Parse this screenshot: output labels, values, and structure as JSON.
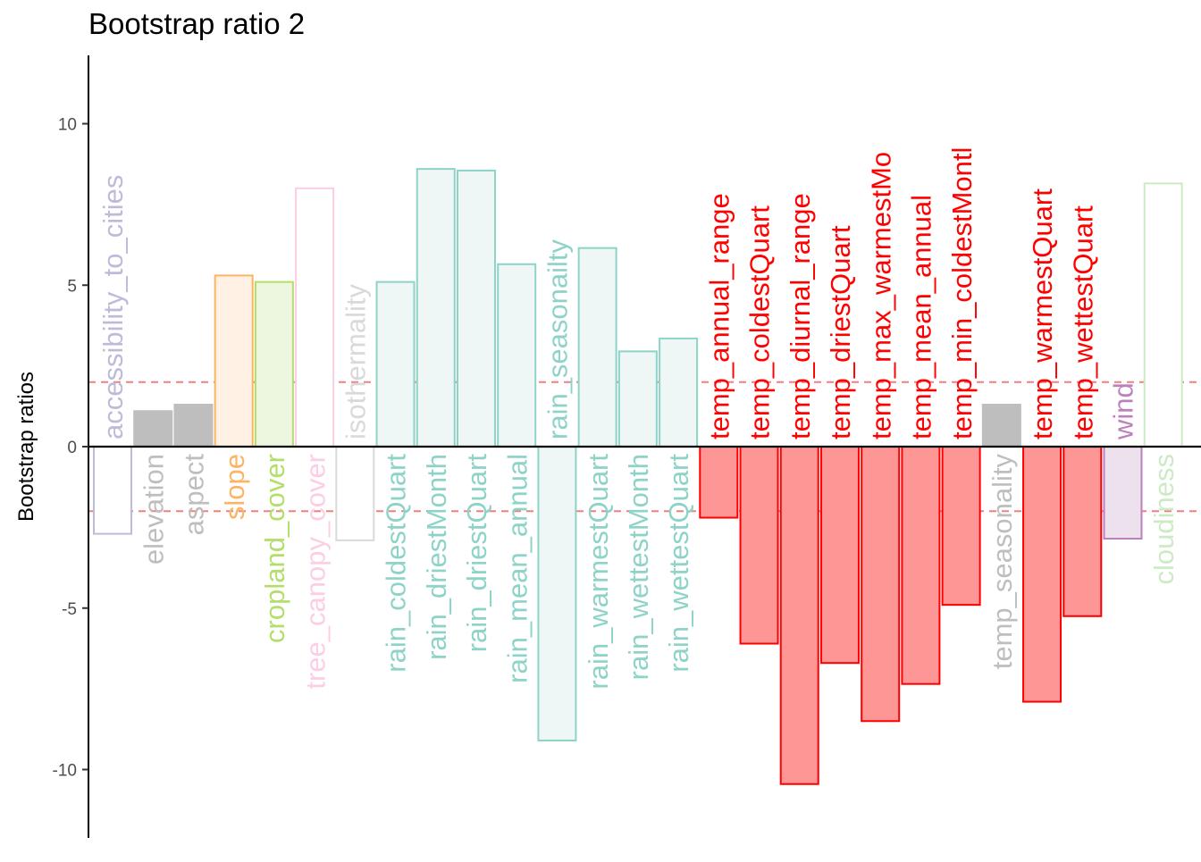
{
  "chart_data": {
    "type": "bar",
    "title": "Bootstrap ratio 2",
    "xlabel": "",
    "ylabel": "Bootstrap ratios",
    "ylim": [
      -12,
      12
    ],
    "yticks": [
      -10,
      -5,
      0,
      5,
      10
    ],
    "ytick_labels": [
      "-10",
      "-5",
      "0",
      "5",
      "10"
    ],
    "threshold_lines": [
      2,
      -2
    ],
    "grid": false,
    "legend": "none",
    "categories": [
      "accessibility_to_cities",
      "elevation",
      "aspect",
      "slope",
      "cropland_cover",
      "tree_canopy_cover",
      "isothermality",
      "rain_coldestQuart",
      "rain_driestMonth",
      "rain_driestQuart",
      "rain_mean_annual",
      "rain_seasonailty",
      "rain_warmestQuart",
      "rain_wettestMonth",
      "rain_wettestQuart",
      "temp_annual_range",
      "temp_coldestQuart",
      "temp_diurnal_range",
      "temp_driestQuart",
      "temp_max_warmestMo",
      "temp_mean_annual",
      "temp_min_coldestMontl",
      "temp_seasonality",
      "temp_warmestQuart",
      "temp_wettestQuart",
      "wind",
      "cloudiness"
    ],
    "values": [
      -2.7,
      1.1,
      1.3,
      5.3,
      5.1,
      8.0,
      -2.9,
      5.1,
      8.6,
      8.55,
      5.65,
      -9.1,
      6.15,
      2.95,
      3.35,
      -2.2,
      -6.1,
      -10.45,
      -6.7,
      -8.5,
      -7.35,
      -4.9,
      1.3,
      -7.9,
      -5.25,
      -2.85,
      8.15
    ],
    "label_colors": [
      "#BEBADA",
      "#BEBEBE",
      "#BEBEBE",
      "#FDB462",
      "#B3DE69",
      "#FCCDE5",
      "#D9D9D9",
      "#8DD3C7",
      "#8DD3C7",
      "#8DD3C7",
      "#8DD3C7",
      "#8DD3C7",
      "#8DD3C7",
      "#8DD3C7",
      "#8DD3C7",
      "#FF0000",
      "#FF0000",
      "#FF0000",
      "#FF0000",
      "#FF0000",
      "#FF0000",
      "#FF0000",
      "#BEBEBE",
      "#FF0000",
      "#FF0000",
      "#BC80BD",
      "#CCEBC5"
    ],
    "bar_fills": [
      "#FFFFFF",
      "#BEBEBE",
      "#BEBEBE",
      "#FFF2E4",
      "#EDF7E0",
      "#FFFFFF",
      "#FFFFFF",
      "#EEF7F5",
      "#EEF7F5",
      "#EEF7F5",
      "#EEF7F5",
      "#EEF7F5",
      "#EEF7F5",
      "#EEF7F5",
      "#EEF7F5",
      "#FF9696",
      "#FF9696",
      "#FF9696",
      "#FF9696",
      "#FF9696",
      "#FF9696",
      "#FF9696",
      "#BEBEBE",
      "#FF9696",
      "#FF9696",
      "#EDE1EE",
      "#FFFFFF"
    ],
    "threshold_color": "#F08080",
    "zero_line_color": "#000000"
  }
}
